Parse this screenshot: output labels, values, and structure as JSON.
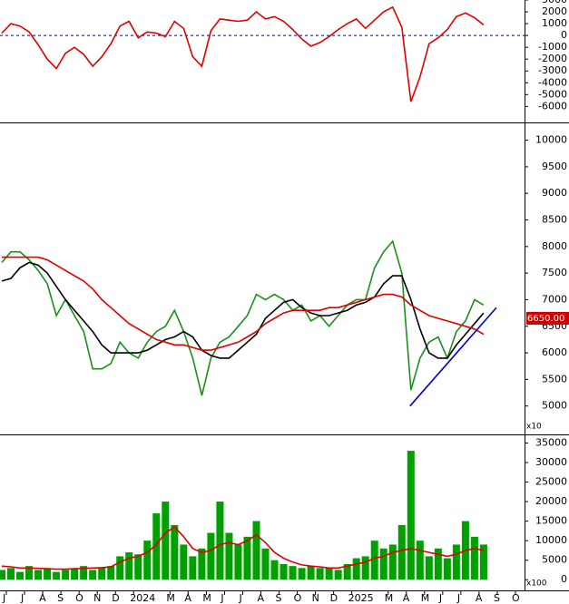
{
  "chart_data": {
    "type": "stock",
    "x": [
      -0.25,
      0.25,
      0.75,
      1.25,
      1.75,
      2.25,
      2.75,
      3.25,
      3.75,
      4.25,
      4.75,
      5.25,
      5.75,
      6.25,
      6.75,
      7.25,
      7.75,
      8.25,
      8.75,
      9.25,
      9.75,
      10.25,
      10.75,
      11.25,
      11.75,
      12.25,
      12.75,
      13.25,
      13.75,
      14.25,
      14.75,
      15.25,
      15.75,
      16.25,
      16.75,
      17.25,
      17.75,
      18.25,
      18.75,
      19.25,
      19.75,
      20.25,
      20.75,
      21.25,
      21.75,
      22.25,
      22.75,
      23.25,
      23.75,
      24.25,
      24.75,
      25.25,
      25.75,
      26.25
    ],
    "xlim": [
      -0.35,
      28.5
    ],
    "xticks": [
      {
        "value": 0,
        "label": "J"
      },
      {
        "value": 1,
        "label": "J"
      },
      {
        "value": 2,
        "label": "A"
      },
      {
        "value": 3,
        "label": "S"
      },
      {
        "value": 4,
        "label": "O"
      },
      {
        "value": 5,
        "label": "N"
      },
      {
        "value": 6,
        "label": "D"
      },
      {
        "value": 7,
        "label": "2024"
      },
      {
        "value": 9,
        "label": "M"
      },
      {
        "value": 10,
        "label": "A"
      },
      {
        "value": 11,
        "label": "M"
      },
      {
        "value": 12,
        "label": "J"
      },
      {
        "value": 13,
        "label": "J"
      },
      {
        "value": 14,
        "label": "A"
      },
      {
        "value": 15,
        "label": "S"
      },
      {
        "value": 16,
        "label": "O"
      },
      {
        "value": 17,
        "label": "N"
      },
      {
        "value": 18,
        "label": "D"
      },
      {
        "value": 19,
        "label": "2025"
      },
      {
        "value": 21,
        "label": "M"
      },
      {
        "value": 22,
        "label": "A"
      },
      {
        "value": 23,
        "label": "M"
      },
      {
        "value": 24,
        "label": "J"
      },
      {
        "value": 25,
        "label": "J"
      },
      {
        "value": 26,
        "label": "A"
      },
      {
        "value": 27,
        "label": "S"
      },
      {
        "value": 28,
        "label": "O"
      }
    ],
    "panels": [
      {
        "ylim": [
          -7200,
          3000
        ],
        "yticks": [
          3000,
          2000,
          1000,
          0,
          -1000,
          -2000,
          -3000,
          -4000,
          -5000,
          -6000
        ],
        "reference_line": 0,
        "reference_color": "#00008b",
        "series": [
          {
            "type": "line",
            "color": "#e00000",
            "values": [
              200,
              1000,
              800,
              300,
              -800,
              -2000,
              -2800,
              -1500,
              -1000,
              -1600,
              -2600,
              -1800,
              -700,
              800,
              1200,
              -200,
              300,
              200,
              -100,
              1200,
              600,
              -1800,
              -2600,
              400,
              1400,
              1300,
              1200,
              1300,
              2000,
              1400,
              1600,
              1200,
              500,
              -300,
              -900,
              -600,
              -100,
              500,
              1000,
              1400,
              600,
              1300,
              2000,
              2400,
              700,
              -5600,
              -3500,
              -700,
              -200,
              500,
              1600,
              1900,
              1500,
              900
            ]
          }
        ]
      },
      {
        "ylim": [
          4500,
          10300
        ],
        "yticks": [
          5000,
          5500,
          6000,
          6500,
          7000,
          7500,
          8000,
          8500,
          9000,
          9500,
          10000
        ],
        "unit": "x10",
        "last_price": {
          "value": 6650,
          "label": "6650.00"
        },
        "trendline": {
          "color": "#0000cc",
          "x": [
            22.2,
            26.95
          ],
          "values": [
            5000,
            6850
          ]
        },
        "series": [
          {
            "type": "line",
            "color": "#1a8f1a",
            "values": [
              7700,
              7900,
              7900,
              7750,
              7550,
              7300,
              6700,
              7000,
              6700,
              6400,
              5700,
              5700,
              5800,
              6200,
              6000,
              5900,
              6200,
              6400,
              6500,
              6800,
              6400,
              5900,
              5200,
              5900,
              6200,
              6300,
              6500,
              6700,
              7100,
              7000,
              7100,
              7000,
              6800,
              6900,
              6600,
              6700,
              6500,
              6700,
              6900,
              7000,
              7000,
              7600,
              7900,
              8100,
              7500,
              5300,
              5900,
              6200,
              6300,
              5900,
              6400,
              6600,
              7000,
              6900
            ]
          },
          {
            "type": "line",
            "color": "#000000",
            "values": [
              7350,
              7400,
              7600,
              7700,
              7650,
              7500,
              7250,
              7000,
              6800,
              6600,
              6400,
              6150,
              6000,
              6000,
              6000,
              6000,
              6050,
              6150,
              6250,
              6300,
              6400,
              6300,
              6050,
              5950,
              5900,
              5900,
              6050,
              6200,
              6350,
              6650,
              6800,
              6950,
              7000,
              6850,
              6750,
              6700,
              6700,
              6750,
              6800,
              6900,
              6950,
              7050,
              7300,
              7450,
              7450,
              7000,
              6450,
              6000,
              5900,
              5900,
              6150,
              6350,
              6550,
              6750
            ]
          },
          {
            "type": "line",
            "color": "#e00000",
            "values": [
              7800,
              7800,
              7800,
              7800,
              7800,
              7750,
              7650,
              7550,
              7450,
              7350,
              7200,
              7000,
              6850,
              6700,
              6550,
              6450,
              6350,
              6250,
              6200,
              6150,
              6150,
              6100,
              6050,
              6050,
              6100,
              6150,
              6200,
              6300,
              6400,
              6550,
              6650,
              6750,
              6800,
              6800,
              6800,
              6800,
              6850,
              6850,
              6900,
              6950,
              7000,
              7050,
              7100,
              7100,
              7050,
              6900,
              6800,
              6700,
              6650,
              6600,
              6550,
              6500,
              6450,
              6350
            ]
          }
        ]
      },
      {
        "ylim": [
          -2500,
          36500
        ],
        "yticks": [
          0,
          5000,
          10000,
          15000,
          20000,
          25000,
          30000,
          35000
        ],
        "unit": "x100",
        "series": [
          {
            "type": "bar",
            "color": "#00a000",
            "values": [
              2500,
              3000,
              2000,
              3500,
              2500,
              3000,
              2000,
              2500,
              3000,
              3500,
              2500,
              3000,
              3500,
              6000,
              7000,
              6500,
              10000,
              17000,
              20000,
              14000,
              9000,
              6000,
              8000,
              12000,
              20000,
              12000,
              9000,
              11000,
              15000,
              8000,
              5000,
              4000,
              3500,
              3000,
              3500,
              3000,
              3000,
              2500,
              4000,
              5500,
              6000,
              10000,
              8000,
              9000,
              14000,
              33000,
              10000,
              6000,
              8000,
              5500,
              9000,
              15000,
              11000,
              9000
            ]
          },
          {
            "type": "line",
            "color": "#e00000",
            "values": [
              3500,
              3300,
              3000,
              3000,
              2900,
              2800,
              2700,
              2700,
              2800,
              2900,
              3000,
              3100,
              3300,
              4500,
              5500,
              6000,
              7000,
              9000,
              12000,
              13500,
              11000,
              8000,
              7000,
              7500,
              9000,
              9500,
              9000,
              10000,
              11500,
              9500,
              7000,
              5500,
              4500,
              3800,
              3500,
              3300,
              3000,
              3000,
              3500,
              4000,
              4500,
              5500,
              6000,
              7000,
              7500,
              8000,
              7500,
              7000,
              6500,
              6000,
              6500,
              7500,
              8000,
              7500
            ]
          }
        ]
      }
    ]
  }
}
